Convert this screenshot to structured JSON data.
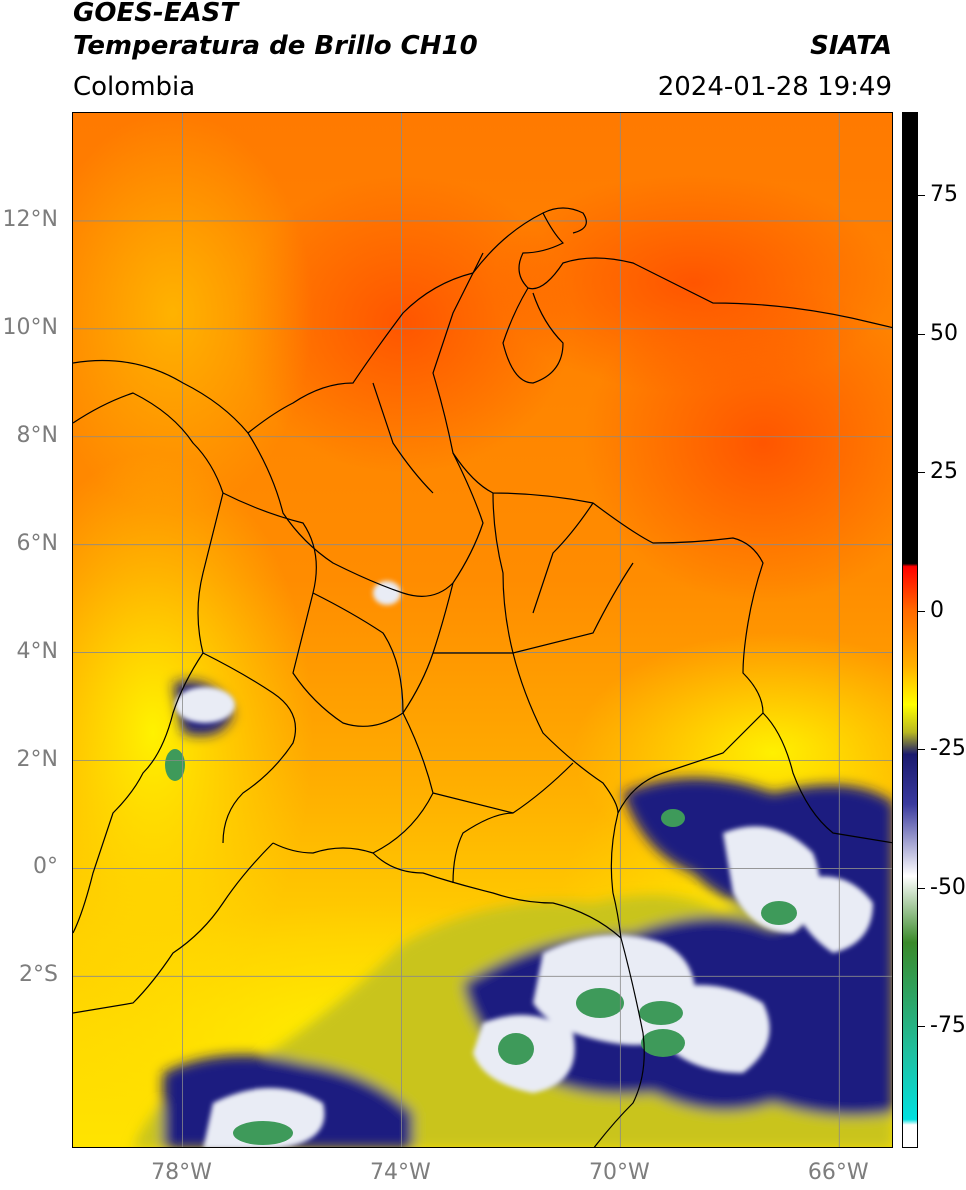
{
  "header": {
    "line1": "GOES-EAST",
    "line2": "Temperatura de Brillo CH10",
    "agency": "SIATA",
    "region": "Colombia",
    "datetime": "2024-01-28 19:49"
  },
  "map": {
    "lon_range": [
      -80,
      -65
    ],
    "lat_range": [
      -5.2,
      14
    ],
    "lat_ticks": [
      {
        "value": 12,
        "label": "12°N"
      },
      {
        "value": 10,
        "label": "10°N"
      },
      {
        "value": 8,
        "label": "8°N"
      },
      {
        "value": 6,
        "label": "6°N"
      },
      {
        "value": 4,
        "label": "4°N"
      },
      {
        "value": 2,
        "label": "2°N"
      },
      {
        "value": 0,
        "label": "0°"
      },
      {
        "value": -2,
        "label": "2°S"
      }
    ],
    "lon_ticks": [
      {
        "value": -78,
        "label": "78°W"
      },
      {
        "value": -74,
        "label": "74°W"
      },
      {
        "value": -70,
        "label": "70°W"
      },
      {
        "value": -66,
        "label": "66°W"
      }
    ],
    "colors": {
      "warm_dark": "#ff5a00",
      "warm": "#ff8c00",
      "warm_light": "#ffb400",
      "yellow": "#ffee00",
      "olive": "#c9c41a",
      "navy": "#1a1a7a",
      "white": "#eef0f4",
      "green": "#3e9a5a",
      "grid": "#8a8a8a",
      "border": "#000000"
    }
  },
  "colorbar": {
    "range": [
      -97,
      90
    ],
    "ticks": [
      {
        "value": 75,
        "label": "75"
      },
      {
        "value": 50,
        "label": "50"
      },
      {
        "value": 25,
        "label": "25"
      },
      {
        "value": 0,
        "label": "0"
      },
      {
        "value": -25,
        "label": "-25"
      },
      {
        "value": -50,
        "label": "-50"
      },
      {
        "value": -75,
        "label": "-75"
      }
    ],
    "stops": [
      {
        "value": 90,
        "color": "#000000"
      },
      {
        "value": 8.5,
        "color": "#000000"
      },
      {
        "value": 8,
        "color": "#ff0000"
      },
      {
        "value": 0,
        "color": "#ff6a00"
      },
      {
        "value": -10,
        "color": "#ffb000"
      },
      {
        "value": -17,
        "color": "#ffff00"
      },
      {
        "value": -22,
        "color": "#b8b820"
      },
      {
        "value": -26,
        "color": "#1a1a6e"
      },
      {
        "value": -35,
        "color": "#3a3a9e"
      },
      {
        "value": -48,
        "color": "#ffffff"
      },
      {
        "value": -60,
        "color": "#3a8a2a"
      },
      {
        "value": -80,
        "color": "#20c0a0"
      },
      {
        "value": -92,
        "color": "#00e0e0"
      },
      {
        "value": -93,
        "color": "#ffffff"
      },
      {
        "value": -97,
        "color": "#ffffff"
      }
    ]
  }
}
